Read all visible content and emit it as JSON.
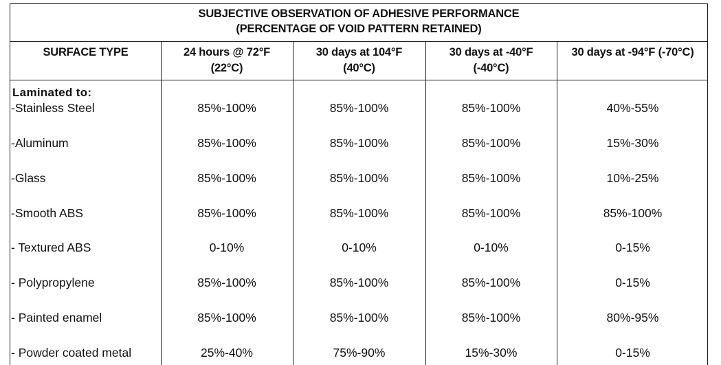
{
  "title": {
    "line1": "SUBJECTIVE OBSERVATION OF ADHESIVE PERFORMANCE",
    "line2": "(PERCENTAGE OF VOID PATTERN RETAINED)"
  },
  "headers": [
    {
      "line1": "SURFACE TYPE",
      "line2": ""
    },
    {
      "line1": "24 hours @ 72°F",
      "line2": "(22°C)"
    },
    {
      "line1": "30 days at 104°F",
      "line2": "(40°C)"
    },
    {
      "line1": "30 days at -40°F",
      "line2": "(-40°C)"
    },
    {
      "line1": "30 days at -94°F (-70°C)",
      "line2": ""
    }
  ],
  "group_label": "Laminated to:",
  "rows": [
    {
      "surface": "-Stainless Steel",
      "values": [
        "85%-100%",
        "85%-100%",
        "85%-100%",
        "40%-55%"
      ]
    },
    {
      "surface": "-Aluminum",
      "values": [
        "85%-100%",
        "85%-100%",
        "85%-100%",
        "15%-30%"
      ]
    },
    {
      "surface": "-Glass",
      "values": [
        "85%-100%",
        "85%-100%",
        "85%-100%",
        "10%-25%"
      ]
    },
    {
      "surface": "-Smooth ABS",
      "values": [
        "85%-100%",
        "85%-100%",
        "85%-100%",
        "85%-100%"
      ]
    },
    {
      "surface": "- Textured ABS",
      "values": [
        "0-10%",
        "0-10%",
        "0-10%",
        "0-15%"
      ]
    },
    {
      "surface": "- Polypropylene",
      "values": [
        "85%-100%",
        "85%-100%",
        "85%-100%",
        "0-15%"
      ]
    },
    {
      "surface": "- Painted enamel",
      "values": [
        "85%-100%",
        "85%-100%",
        "85%-100%",
        "80%-95%"
      ]
    },
    {
      "surface": "- Powder coated metal",
      "values": [
        "25%-40%",
        "75%-90%",
        "15%-30%",
        "0-15%"
      ]
    }
  ]
}
